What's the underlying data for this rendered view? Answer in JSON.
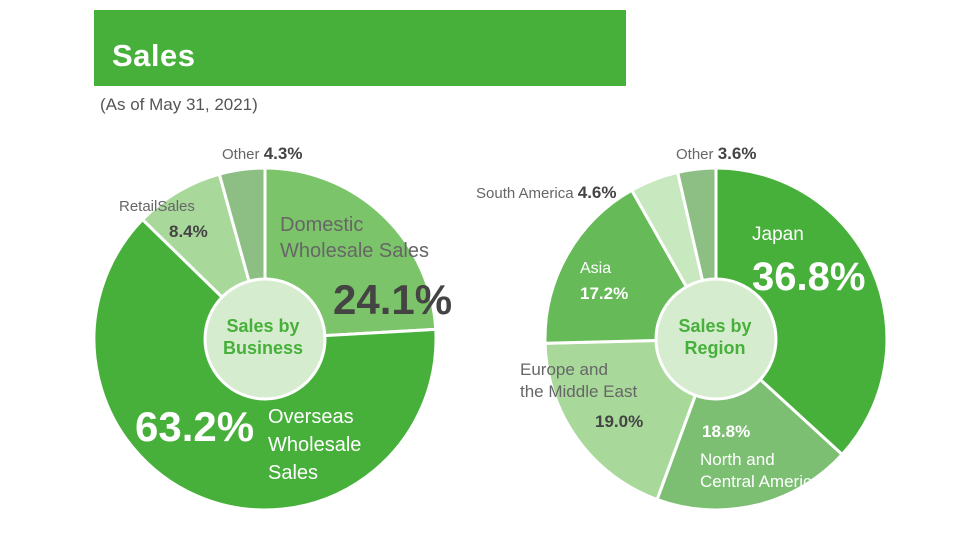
{
  "banner": {
    "title": "Sales"
  },
  "as_of": "(As of May 31, 2021)",
  "chart_data": [
    {
      "type": "pie",
      "title": "Sales by Business",
      "center_label": [
        "Sales by",
        "Business"
      ],
      "slices": [
        {
          "key": "domestic",
          "label": "Domestic Wholesale Sales",
          "label_lines": [
            "Domestic",
            "Wholesale Sales"
          ],
          "value": 24.1,
          "value_text": "24.1%",
          "color": "#7cc46a"
        },
        {
          "key": "overseas",
          "label": "Overseas Wholesale Sales",
          "label_lines": [
            "Overseas",
            "Wholesale",
            "Sales"
          ],
          "value": 63.2,
          "value_text": "63.2%",
          "color": "#47b03b"
        },
        {
          "key": "retail",
          "label": "RetailSales",
          "label_lines": [
            "RetailSales"
          ],
          "value": 8.4,
          "value_text": "8.4%",
          "color": "#a8d89a"
        },
        {
          "key": "other",
          "label": "Other",
          "label_lines": [
            "Other"
          ],
          "value": 4.3,
          "value_text": "4.3%",
          "color": "#8dbf84"
        }
      ]
    },
    {
      "type": "pie",
      "title": "Sales by Region",
      "center_label": [
        "Sales by",
        "Region"
      ],
      "slices": [
        {
          "key": "japan",
          "label": "Japan",
          "label_lines": [
            "Japan"
          ],
          "value": 36.8,
          "value_text": "36.8%",
          "color": "#47b03b"
        },
        {
          "key": "north_central_america",
          "label": "North and Central America",
          "label_lines": [
            "North and",
            "Central America"
          ],
          "value": 18.8,
          "value_text": "18.8%",
          "color": "#7cbf73"
        },
        {
          "key": "europe_me",
          "label": "Europe and the Middle East",
          "label_lines": [
            "Europe and",
            "the Middle East"
          ],
          "value": 19.0,
          "value_text": "19.0%",
          "color": "#a8d89a"
        },
        {
          "key": "asia",
          "label": "Asia",
          "label_lines": [
            "Asia"
          ],
          "value": 17.2,
          "value_text": "17.2%",
          "color": "#66ba57"
        },
        {
          "key": "south_america",
          "label": "South America",
          "label_lines": [
            "South America"
          ],
          "value": 4.6,
          "value_text": "4.6%",
          "color": "#c8e8bf"
        },
        {
          "key": "other",
          "label": "Other",
          "label_lines": [
            "Other"
          ],
          "value": 3.6,
          "value_text": "3.6%",
          "color": "#8dbf84"
        }
      ]
    }
  ]
}
